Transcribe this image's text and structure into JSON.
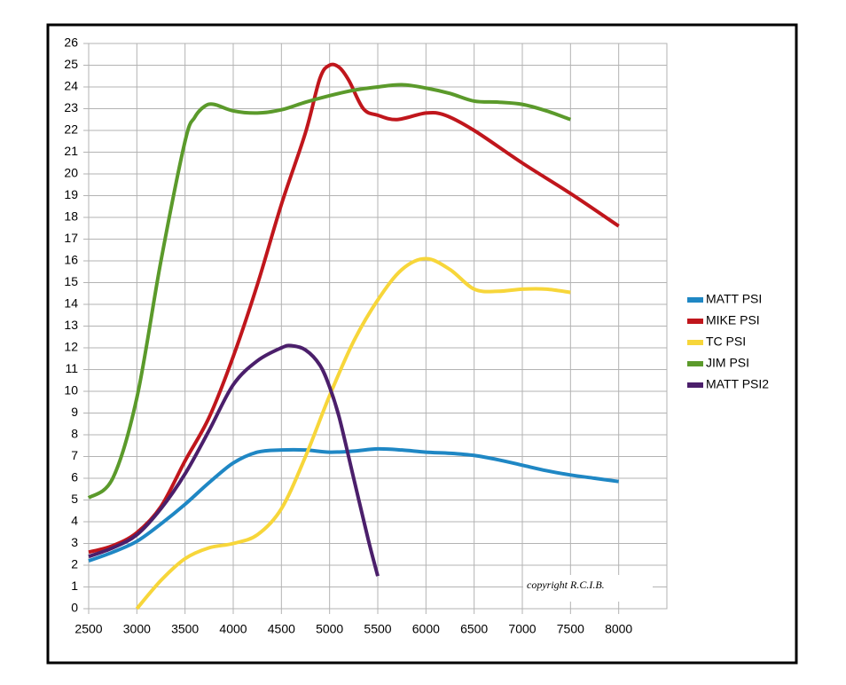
{
  "chart_data": {
    "type": "line",
    "xlim": [
      2500,
      8500
    ],
    "xticks": [
      2500,
      3000,
      3500,
      4000,
      4500,
      5000,
      5500,
      6000,
      6500,
      7000,
      7500,
      8000
    ],
    "ylim": [
      0,
      26
    ],
    "yticks": [
      0,
      1,
      2,
      3,
      4,
      5,
      6,
      7,
      8,
      9,
      10,
      11,
      12,
      13,
      14,
      15,
      16,
      17,
      18,
      19,
      20,
      21,
      22,
      23,
      24,
      25,
      26
    ],
    "grid": true,
    "legend": "right",
    "annotation": "copyright R.C.I.B.",
    "series": [
      {
        "name": "MATT PSI",
        "color": "#1f87c4",
        "x": [
          2500,
          2750,
          3000,
          3250,
          3500,
          3750,
          4000,
          4250,
          4500,
          4750,
          5000,
          5250,
          5500,
          5750,
          6000,
          6250,
          6500,
          6750,
          7000,
          7250,
          7500,
          7750,
          8000
        ],
        "values": [
          2.2,
          2.6,
          3.1,
          3.9,
          4.8,
          5.8,
          6.7,
          7.2,
          7.3,
          7.3,
          7.2,
          7.25,
          7.35,
          7.3,
          7.2,
          7.15,
          7.05,
          6.85,
          6.6,
          6.35,
          6.15,
          6.0,
          5.85
        ]
      },
      {
        "name": "MIKE PSI",
        "color": "#c0161c",
        "x": [
          2500,
          2750,
          3000,
          3250,
          3500,
          3750,
          4000,
          4250,
          4500,
          4750,
          4900,
          5000,
          5100,
          5200,
          5350,
          5500,
          5700,
          6000,
          6200,
          6500,
          7000,
          7500,
          8000
        ],
        "values": [
          2.6,
          2.9,
          3.5,
          4.7,
          6.8,
          8.8,
          11.6,
          14.9,
          18.6,
          21.9,
          24.4,
          25,
          24.9,
          24.3,
          23,
          22.7,
          22.5,
          22.8,
          22.7,
          22.0,
          20.5,
          19.1,
          17.6
        ]
      },
      {
        "name": "TC PSI",
        "color": "#f7d63a",
        "x": [
          3000,
          3250,
          3500,
          3750,
          4000,
          4250,
          4500,
          4750,
          5000,
          5250,
          5500,
          5750,
          6000,
          6250,
          6500,
          6750,
          7000,
          7250,
          7500
        ],
        "values": [
          0,
          1.3,
          2.3,
          2.8,
          3.0,
          3.4,
          4.6,
          7.0,
          9.8,
          12.3,
          14.2,
          15.6,
          16.1,
          15.6,
          14.7,
          14.6,
          14.7,
          14.7,
          14.55
        ]
      },
      {
        "name": "JIM PSI",
        "color": "#5b9a2b",
        "x": [
          2500,
          2750,
          3000,
          3250,
          3500,
          3600,
          3700,
          3800,
          4000,
          4250,
          4500,
          4750,
          5000,
          5250,
          5500,
          5750,
          6000,
          6250,
          6500,
          6750,
          7000,
          7250,
          7500
        ],
        "values": [
          5.1,
          6.0,
          9.7,
          16,
          21.5,
          22.6,
          23.1,
          23.2,
          22.9,
          22.8,
          22.95,
          23.3,
          23.6,
          23.85,
          24,
          24.1,
          23.95,
          23.7,
          23.35,
          23.3,
          23.2,
          22.9,
          22.5
        ]
      },
      {
        "name": "MATT PSI2",
        "color": "#4b1f6b",
        "x": [
          2500,
          2750,
          3000,
          3250,
          3500,
          3750,
          4000,
          4250,
          4500,
          4600,
          4750,
          4900,
          5000,
          5100,
          5250,
          5400,
          5500
        ],
        "values": [
          2.4,
          2.8,
          3.4,
          4.6,
          6.2,
          8.2,
          10.3,
          11.4,
          12.0,
          12.1,
          11.9,
          11.2,
          10.2,
          8.8,
          6.0,
          3.2,
          1.5
        ]
      }
    ]
  }
}
